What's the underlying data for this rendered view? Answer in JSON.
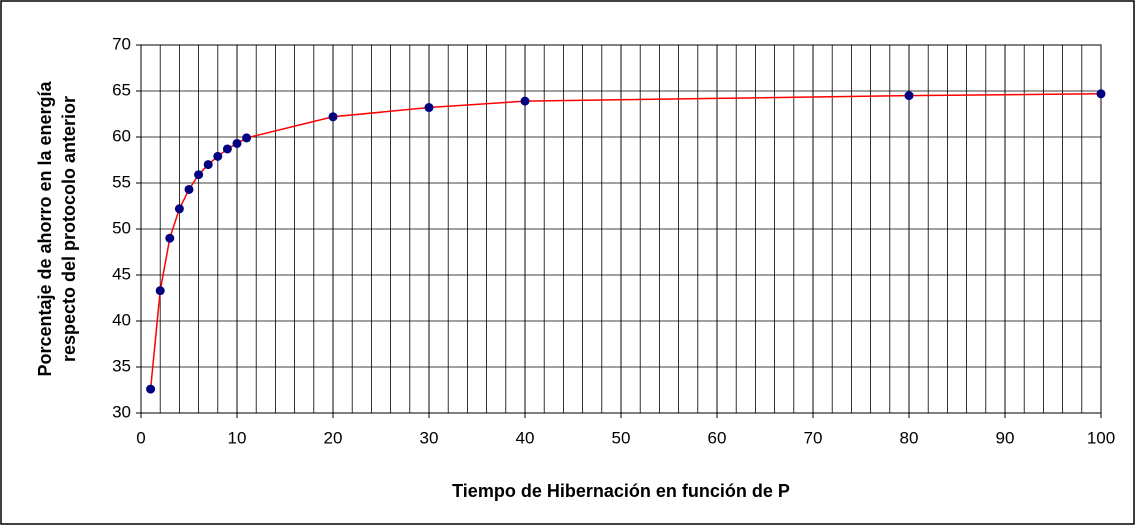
{
  "chart_data": {
    "type": "line",
    "xlabel": "Tiempo de Hibernación en función de P",
    "ylabel": [
      "Porcentaje de ahorro en la energía",
      "respecto del protocolo anterior"
    ],
    "x": [
      1,
      2,
      3,
      4,
      5,
      6,
      7,
      8,
      9,
      10,
      11,
      20,
      30,
      40,
      80,
      100
    ],
    "series": [
      {
        "color": "#ff0000",
        "marker_color": "#000080",
        "values": [
          32.6,
          43.3,
          49,
          52.2,
          54.3,
          55.9,
          57,
          57.9,
          58.7,
          59.3,
          59.9,
          62.2,
          63.2,
          63.9,
          64.5,
          64.7
        ]
      }
    ],
    "xlim": [
      0,
      100
    ],
    "xticks": [
      0,
      10,
      20,
      30,
      40,
      50,
      60,
      70,
      80,
      90,
      100
    ],
    "ylim": [
      30,
      70
    ],
    "yticks": [
      30,
      35,
      40,
      45,
      50,
      55,
      60,
      65,
      70
    ],
    "grid": true,
    "x_minor_grid_step": 2
  }
}
